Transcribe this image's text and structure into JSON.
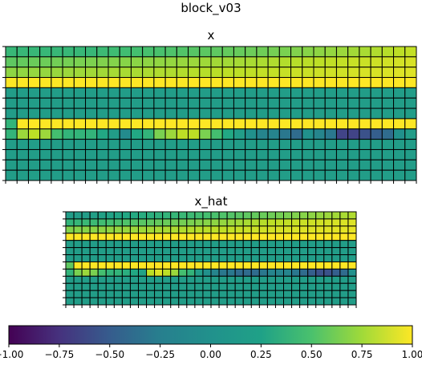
{
  "suptitle": "block_v03",
  "chart_data": [
    {
      "type": "heatmap",
      "title": "x",
      "rows": 13,
      "cols": 36,
      "vmin": -1.0,
      "vmax": 1.0,
      "values": [
        [
          0.33,
          0.33,
          0.33,
          0.33,
          0.33,
          0.33,
          0.33,
          0.33,
          0.36,
          0.37,
          0.38,
          0.4,
          0.41,
          0.42,
          0.44,
          0.45,
          0.47,
          0.49,
          0.5,
          0.52,
          0.53,
          0.55,
          0.56,
          0.58,
          0.6,
          0.62,
          0.64,
          0.66,
          0.68,
          0.7,
          0.72,
          0.74,
          0.76,
          0.78,
          0.8,
          0.82
        ],
        [
          0.5,
          0.52,
          0.54,
          0.55,
          0.57,
          0.58,
          0.6,
          0.61,
          0.62,
          0.63,
          0.64,
          0.65,
          0.66,
          0.67,
          0.68,
          0.69,
          0.7,
          0.71,
          0.72,
          0.72,
          0.73,
          0.74,
          0.75,
          0.76,
          0.77,
          0.78,
          0.79,
          0.8,
          0.81,
          0.82,
          0.83,
          0.84,
          0.85,
          0.86,
          0.87,
          0.88
        ],
        [
          0.66,
          0.67,
          0.68,
          0.68,
          0.69,
          0.7,
          0.71,
          0.72,
          0.72,
          0.73,
          0.74,
          0.74,
          0.75,
          0.76,
          0.76,
          0.77,
          0.78,
          0.78,
          0.79,
          0.8,
          0.8,
          0.81,
          0.82,
          0.82,
          0.83,
          0.84,
          0.84,
          0.85,
          0.86,
          0.86,
          0.87,
          0.88,
          0.88,
          0.89,
          0.9,
          0.9
        ],
        [
          1,
          1,
          1,
          1,
          1,
          1,
          1,
          1,
          1,
          1,
          1,
          1,
          1,
          1,
          1,
          1,
          1,
          1,
          1,
          1,
          1,
          1,
          1,
          1,
          1,
          1,
          1,
          1,
          1,
          1,
          1,
          1,
          1,
          1,
          1,
          1
        ],
        [
          0.1,
          0.1,
          0.1,
          0.1,
          0.1,
          0.1,
          0.1,
          0.1,
          0.1,
          0.1,
          0.1,
          0.1,
          0.1,
          0.1,
          0.1,
          0.1,
          0.1,
          0.1,
          0.1,
          0.1,
          0.1,
          0.1,
          0.1,
          0.1,
          0.1,
          0.1,
          0.1,
          0.1,
          0.1,
          0.1,
          0.1,
          0.1,
          0.1,
          0.1,
          0.1,
          0.1
        ],
        [
          0.1,
          0.1,
          0.1,
          0.1,
          0.1,
          0.1,
          0.1,
          0.1,
          0.1,
          0.1,
          0.1,
          0.1,
          0.1,
          0.1,
          0.1,
          0.1,
          0.1,
          0.1,
          0.1,
          0.1,
          0.1,
          0.1,
          0.1,
          0.1,
          0.1,
          0.1,
          0.1,
          0.1,
          0.1,
          0.1,
          0.1,
          0.1,
          0.1,
          0.1,
          0.1,
          0.1
        ],
        [
          0.1,
          0.1,
          0.1,
          0.1,
          0.1,
          0.1,
          0.1,
          0.1,
          0.1,
          0.1,
          0.1,
          0.1,
          0.1,
          0.1,
          0.1,
          0.1,
          0.1,
          0.1,
          0.1,
          0.1,
          0.1,
          0.1,
          0.1,
          0.1,
          0.1,
          0.1,
          0.1,
          0.1,
          0.1,
          0.1,
          0.1,
          0.1,
          0.1,
          0.1,
          0.1,
          0.1
        ],
        [
          0.3,
          1,
          1,
          1,
          1,
          1,
          1,
          1,
          1,
          1,
          1,
          1,
          1,
          1,
          1,
          1,
          1,
          1,
          1,
          1,
          1,
          1,
          1,
          1,
          1,
          1,
          1,
          1,
          1,
          1,
          1,
          1,
          1,
          1,
          1,
          1
        ],
        [
          0.3,
          0.7,
          0.8,
          0.7,
          0.4,
          0.3,
          0.3,
          0.3,
          0.2,
          0.1,
          -0.05,
          0.2,
          0.3,
          0.6,
          0.7,
          0.8,
          0.8,
          0.6,
          0.4,
          0.2,
          0.1,
          0.0,
          -0.1,
          -0.1,
          -0.2,
          -0.3,
          0.0,
          -0.1,
          -0.2,
          -0.6,
          -0.6,
          -0.5,
          -0.4,
          -0.3,
          0.0,
          0.1
        ],
        [
          0.1,
          0.1,
          0.1,
          0.1,
          0.1,
          0.1,
          0.1,
          0.1,
          0.1,
          0.1,
          0.1,
          0.1,
          0.1,
          0.1,
          0.1,
          0.1,
          0.1,
          0.1,
          0.1,
          0.1,
          0.1,
          0.1,
          0.1,
          0.1,
          0.1,
          0.1,
          0.1,
          0.1,
          0.1,
          0.1,
          0.1,
          0.1,
          0.1,
          0.1,
          0.1,
          0.1
        ],
        [
          0.1,
          0.1,
          0.1,
          0.1,
          0.1,
          0.1,
          0.1,
          0.1,
          0.1,
          0.1,
          0.1,
          0.1,
          0.1,
          0.1,
          0.1,
          0.1,
          0.1,
          0.1,
          0.1,
          0.1,
          0.1,
          0.1,
          0.1,
          0.1,
          0.1,
          0.1,
          0.1,
          0.1,
          0.1,
          0.1,
          0.1,
          0.1,
          0.1,
          0.1,
          0.1,
          0.1
        ],
        [
          0.1,
          0.1,
          0.1,
          0.1,
          0.1,
          0.1,
          0.1,
          0.1,
          0.1,
          0.1,
          0.1,
          0.1,
          0.1,
          0.1,
          0.1,
          0.1,
          0.1,
          0.1,
          0.1,
          0.1,
          0.1,
          0.1,
          0.1,
          0.1,
          0.1,
          0.1,
          0.1,
          0.1,
          0.1,
          0.1,
          0.1,
          0.1,
          0.1,
          0.1,
          0.1,
          0.1
        ],
        [
          0.1,
          0.1,
          0.1,
          0.1,
          0.1,
          0.1,
          0.1,
          0.1,
          0.1,
          0.1,
          0.1,
          0.1,
          0.1,
          0.1,
          0.1,
          0.1,
          0.1,
          0.1,
          0.1,
          0.1,
          0.1,
          0.1,
          0.1,
          0.1,
          0.1,
          0.1,
          0.1,
          0.1,
          0.1,
          0.1,
          0.1,
          0.1,
          0.1,
          0.1,
          0.1,
          0.1
        ]
      ]
    },
    {
      "type": "heatmap",
      "title": "x_hat",
      "rows": 13,
      "cols": 36,
      "vmin": -1.0,
      "vmax": 1.0,
      "values": [
        [
          0.1,
          0.1,
          0.1,
          0.12,
          0.14,
          0.16,
          0.18,
          0.2,
          0.22,
          0.24,
          0.26,
          0.28,
          0.3,
          0.32,
          0.34,
          0.36,
          0.38,
          0.4,
          0.42,
          0.44,
          0.46,
          0.48,
          0.5,
          0.52,
          0.54,
          0.56,
          0.58,
          0.6,
          0.62,
          0.64,
          0.66,
          0.68,
          0.7,
          0.72,
          0.74,
          0.76
        ],
        [
          0.3,
          0.32,
          0.34,
          0.36,
          0.38,
          0.4,
          0.42,
          0.44,
          0.46,
          0.48,
          0.5,
          0.52,
          0.54,
          0.56,
          0.58,
          0.6,
          0.62,
          0.64,
          0.66,
          0.68,
          0.7,
          0.72,
          0.74,
          0.76,
          0.78,
          0.8,
          0.81,
          0.82,
          0.83,
          0.84,
          0.85,
          0.86,
          0.87,
          0.88,
          0.89,
          0.9
        ],
        [
          0.62,
          0.63,
          0.64,
          0.65,
          0.66,
          0.67,
          0.68,
          0.69,
          0.7,
          0.71,
          0.72,
          0.73,
          0.74,
          0.75,
          0.76,
          0.77,
          0.78,
          0.79,
          0.8,
          0.81,
          0.82,
          0.83,
          0.84,
          0.85,
          0.86,
          0.87,
          0.88,
          0.88,
          0.89,
          0.9,
          0.9,
          0.91,
          0.91,
          0.92,
          0.92,
          0.93
        ],
        [
          1,
          1,
          1,
          1,
          1,
          1,
          1,
          1,
          1,
          1,
          1,
          1,
          1,
          1,
          1,
          1,
          1,
          1,
          1,
          1,
          1,
          1,
          1,
          1,
          1,
          1,
          1,
          1,
          1,
          1,
          1,
          1,
          1,
          1,
          1,
          1
        ],
        [
          0.1,
          0.1,
          0.1,
          0.1,
          0.1,
          0.1,
          0.1,
          0.1,
          0.1,
          0.1,
          0.1,
          0.1,
          0.1,
          0.1,
          0.1,
          0.1,
          0.1,
          0.1,
          0.1,
          0.1,
          0.1,
          0.1,
          0.1,
          0.1,
          0.1,
          0.1,
          0.1,
          0.1,
          0.1,
          0.1,
          0.1,
          0.1,
          0.1,
          0.1,
          0.1,
          0.1
        ],
        [
          0.1,
          0.1,
          0.1,
          0.1,
          0.1,
          0.1,
          0.1,
          0.1,
          0.1,
          0.1,
          0.1,
          0.1,
          0.1,
          0.1,
          0.1,
          0.1,
          0.1,
          0.1,
          0.1,
          0.1,
          0.1,
          0.1,
          0.1,
          0.1,
          0.1,
          0.1,
          0.1,
          0.1,
          0.1,
          0.1,
          0.1,
          0.1,
          0.1,
          0.1,
          0.1,
          0.1
        ],
        [
          0.1,
          0.1,
          0.1,
          0.1,
          0.1,
          0.1,
          0.1,
          0.1,
          0.1,
          0.1,
          0.1,
          0.1,
          0.1,
          0.1,
          0.1,
          0.1,
          0.1,
          0.1,
          0.1,
          0.1,
          0.1,
          0.1,
          0.1,
          0.1,
          0.1,
          0.1,
          0.1,
          0.1,
          0.1,
          0.1,
          0.1,
          0.1,
          0.1,
          0.1,
          0.1,
          0.1
        ],
        [
          0.5,
          1,
          1,
          1,
          1,
          1,
          1,
          1,
          1,
          1,
          1,
          1,
          1,
          1,
          1,
          1,
          1,
          1,
          1,
          1,
          1,
          1,
          1,
          1,
          1,
          1,
          1,
          1,
          1,
          1,
          1,
          1,
          1,
          1,
          1,
          1
        ],
        [
          0.3,
          0.6,
          0.7,
          0.6,
          0.4,
          0.3,
          0.3,
          0.25,
          0.2,
          0.15,
          0.8,
          0.9,
          0.8,
          0.7,
          0.4,
          0.3,
          0.1,
          0.0,
          -0.1,
          -0.2,
          -0.2,
          -0.3,
          -0.3,
          -0.3,
          -0.2,
          -0.1,
          -0.1,
          -0.1,
          -0.2,
          -0.3,
          -0.4,
          -0.5,
          -0.5,
          -0.4,
          -0.3,
          0.0
        ],
        [
          0.1,
          0.1,
          0.1,
          0.1,
          0.1,
          0.1,
          0.1,
          0.1,
          0.1,
          0.1,
          0.1,
          0.1,
          0.1,
          0.1,
          0.1,
          0.1,
          0.1,
          0.1,
          0.1,
          0.1,
          0.1,
          0.1,
          0.1,
          0.1,
          0.1,
          0.1,
          0.1,
          0.1,
          0.1,
          0.1,
          0.1,
          0.1,
          0.1,
          0.1,
          0.1,
          0.1
        ],
        [
          0.1,
          0.1,
          0.1,
          0.1,
          0.1,
          0.1,
          0.1,
          0.1,
          0.1,
          0.1,
          0.1,
          0.1,
          0.1,
          0.1,
          0.1,
          0.1,
          0.1,
          0.1,
          0.1,
          0.1,
          0.1,
          0.1,
          0.1,
          0.1,
          0.1,
          0.1,
          0.1,
          0.1,
          0.1,
          0.1,
          0.1,
          0.1,
          0.1,
          0.1,
          0.1,
          0.1
        ],
        [
          0.1,
          0.1,
          0.1,
          0.1,
          0.1,
          0.1,
          0.1,
          0.1,
          0.1,
          0.1,
          0.1,
          0.1,
          0.1,
          0.1,
          0.1,
          0.1,
          0.1,
          0.1,
          0.1,
          0.1,
          0.1,
          0.1,
          0.1,
          0.1,
          0.1,
          0.1,
          0.1,
          0.1,
          0.1,
          0.1,
          0.1,
          0.1,
          0.1,
          0.1,
          0.1,
          0.1
        ],
        [
          0.1,
          0.1,
          0.1,
          0.1,
          0.1,
          0.1,
          0.1,
          0.1,
          0.1,
          0.1,
          0.1,
          0.1,
          0.1,
          0.1,
          0.1,
          0.1,
          0.1,
          0.1,
          0.1,
          0.1,
          0.1,
          0.1,
          0.1,
          0.1,
          0.1,
          0.1,
          0.1,
          0.1,
          0.1,
          0.1,
          0.1,
          0.1,
          0.1,
          0.1,
          0.1,
          0.1
        ]
      ]
    }
  ],
  "colorbar": {
    "colormap": "viridis",
    "orientation": "horizontal",
    "vmin": -1.0,
    "vmax": 1.0,
    "tick_values": [
      -1.0,
      -0.75,
      -0.5,
      -0.25,
      0.0,
      0.25,
      0.5,
      0.75,
      1.0
    ],
    "tick_labels": [
      "−1.00",
      "−0.75",
      "−0.50",
      "−0.25",
      "0.00",
      "0.25",
      "0.50",
      "0.75",
      "1.00"
    ]
  },
  "colors": {
    "grid_line": "#000000",
    "background": "#ffffff"
  }
}
